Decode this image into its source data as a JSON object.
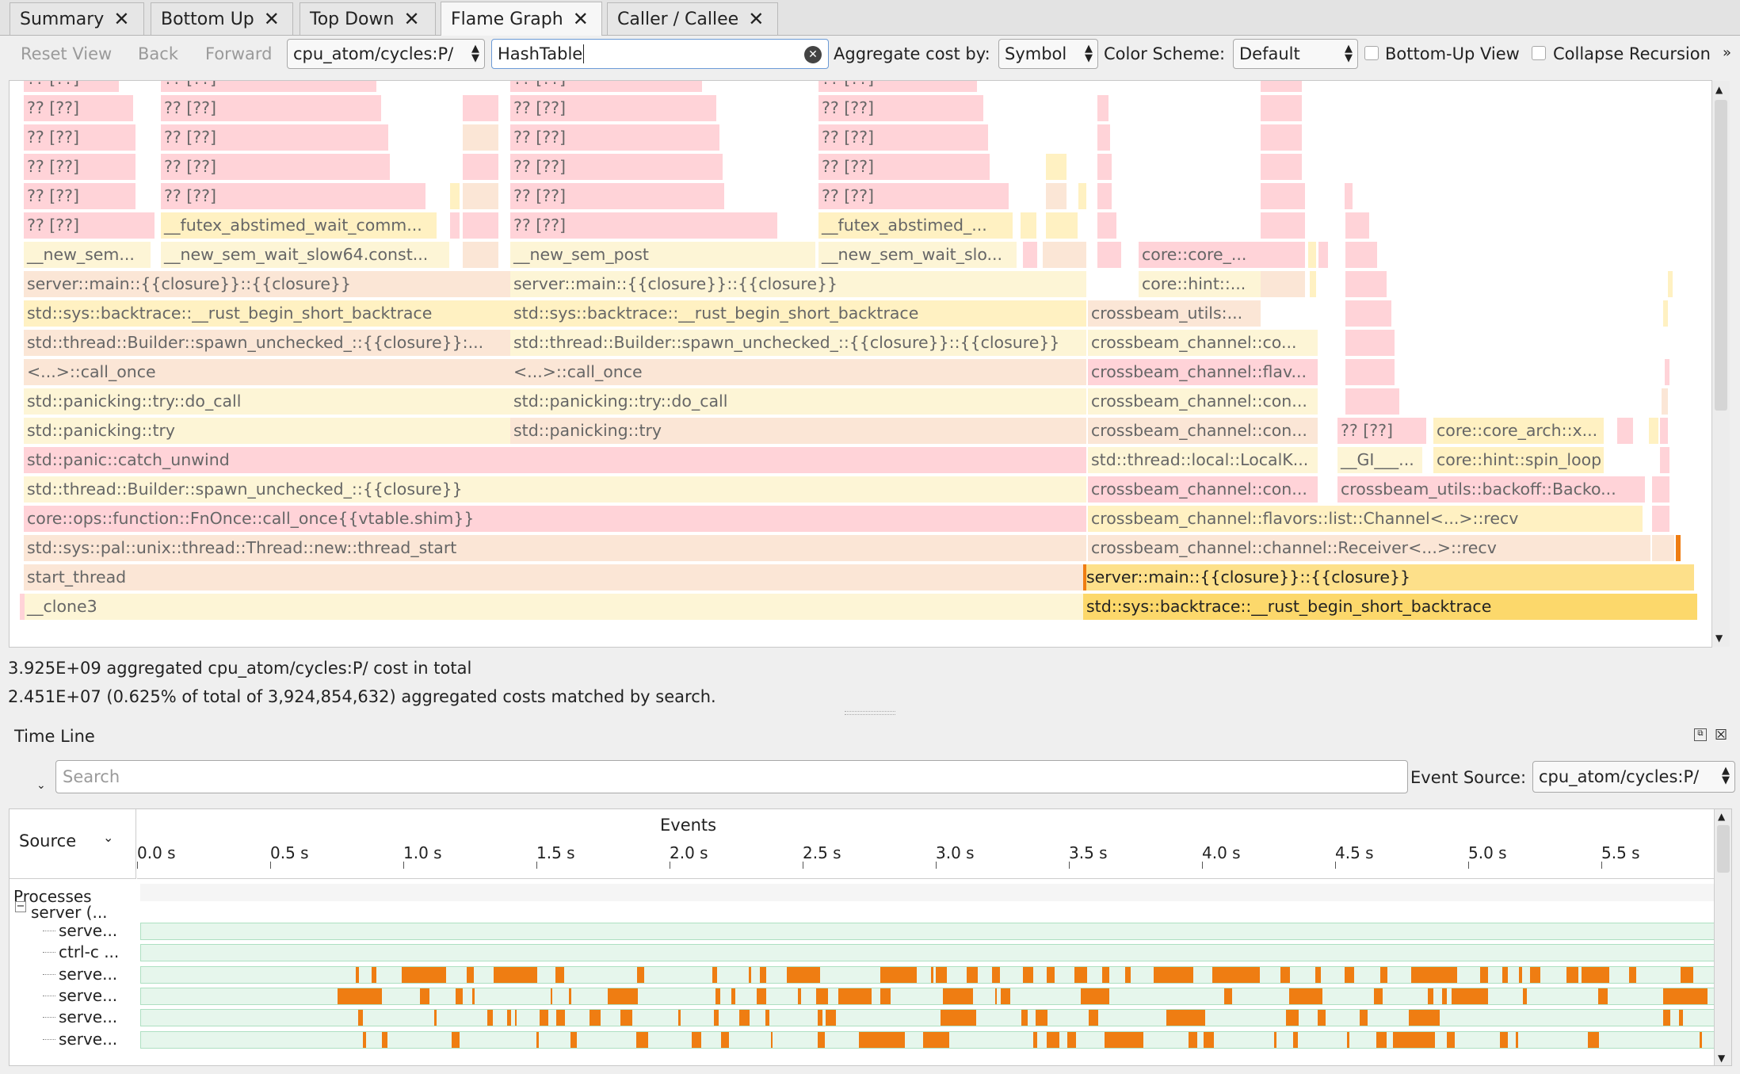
{
  "tabs": [
    {
      "label": "Summary",
      "active": false
    },
    {
      "label": "Bottom Up",
      "active": false
    },
    {
      "label": "Top Down",
      "active": false
    },
    {
      "label": "Flame Graph",
      "active": true
    },
    {
      "label": "Caller / Callee",
      "active": false
    }
  ],
  "toolbar": {
    "reset_view": "Reset View",
    "back": "Back",
    "forward": "Forward",
    "event_type": "cpu_atom/cycles:P/",
    "search_value": "HashTable",
    "aggregate_label": "Aggregate cost by:",
    "aggregate_value": "Symbol",
    "color_scheme_label": "Color Scheme:",
    "color_scheme_value": "Default",
    "bottom_up_label": "Bottom-Up View",
    "collapse_label": "Collapse Recursion",
    "overflow": "»"
  },
  "flame_labels": {
    "unknown": "?? [??]",
    "futex1": "__futex_abstimed_wait_comm...",
    "futex2": "__futex_abstimed_...",
    "sem_wait_short": "__new_sem...",
    "sem_wait_slow64": "__new_sem_wait_slow64.const...",
    "sem_post": "__new_sem_post",
    "sem_wait_slo": "__new_sem_wait_slo...",
    "core_core": "core::core_...",
    "core_hint": "core::hint::...",
    "server_closure": "server::main::{{closure}}::{{closure}}",
    "rust_bt": "std::sys::backtrace::__rust_begin_short_backtrace",
    "crossbeam_utils": "crossbeam_utils:...",
    "spawn_unchecked_a": "std::thread::Builder::spawn_unchecked_::{{closure}}:...",
    "spawn_unchecked_b": "std::thread::Builder::spawn_unchecked_::{{closure}}::{{closure}}",
    "cb_channel_co": "crossbeam_channel::co...",
    "call_once": "<...>::call_once",
    "cb_flav": "crossbeam_channel::flav...",
    "do_call": "std::panicking::try::do_call",
    "cb_con": "crossbeam_channel::con...",
    "panicking_try": "std::panicking::try",
    "core_arch": "core::core_arch::x...",
    "catch_unwind": "std::panic::catch_unwind",
    "localk": "std::thread::local::LocalK...",
    "gl": "__GI___...",
    "spin_loop": "core::hint::spin_loop",
    "spawn_closure": "std::thread::Builder::spawn_unchecked_::{{closure}}",
    "backoff": "crossbeam_utils::backoff::Backo...",
    "fnonce": "core::ops::function::FnOnce::call_once{{vtable.shim}}",
    "list_recv": "crossbeam_channel::flavors::list::Channel<...>::recv",
    "thread_start": "std::sys::pal::unix::thread::Thread::new::thread_start",
    "receiver_recv": "crossbeam_channel::channel::Receiver<...>::recv",
    "start_thread": "start_thread",
    "server_closure_hl": "server::main::{{closure}}::{{closure}}",
    "clone3": "__clone3",
    "rust_bt_hl": "std::sys::backtrace::__rust_begin_short_backtrace"
  },
  "summary": {
    "total": "3.925E+09 aggregated cpu_atom/cycles:P/ cost in total",
    "matched": "2.451E+07 (0.625% of total of 3,924,854,632) aggregated costs matched by search."
  },
  "timeline": {
    "title": "Time Line",
    "search_placeholder": "Search",
    "event_source_label": "Event Source:",
    "event_source_value": "cpu_atom/cycles:P/",
    "source_header": "Source",
    "events_header": "Events",
    "ticks": [
      "0.0 s",
      "0.5 s",
      "1.0 s",
      "1.5 s",
      "2.0 s",
      "2.5 s",
      "3.0 s",
      "3.5 s",
      "4.0 s",
      "4.5 s",
      "5.0 s",
      "5.5 s"
    ],
    "processes_label": "Processes",
    "process_name": "server (...",
    "threads": [
      "serve...",
      "ctrl-c ...",
      "serve...",
      "serve...",
      "serve...",
      "serve..."
    ]
  },
  "colors": {
    "pink": "#ffd3d8",
    "pale_yellow": "#fdf5d6",
    "highlight": "#fde08a",
    "event_orange": "#ef7d12"
  }
}
